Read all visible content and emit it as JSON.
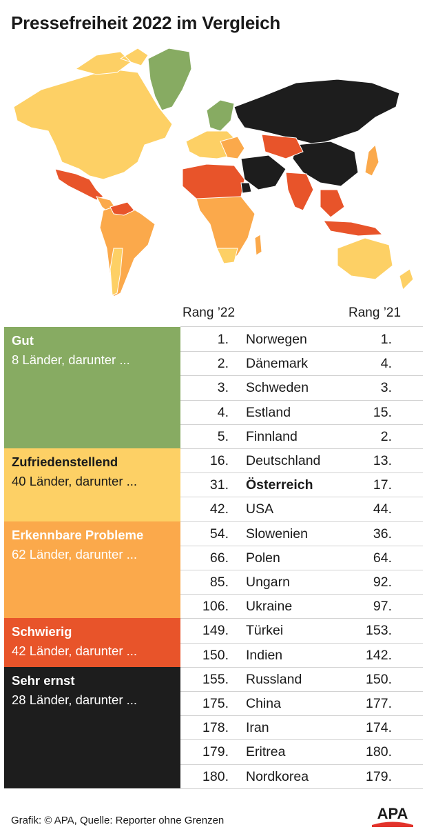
{
  "title": "Pressefreiheit 2022 im Vergleich",
  "colors": {
    "gut": "#87ab62",
    "zufriedenstellend": "#fdd065",
    "erkennbare_probleme": "#fba94b",
    "schwierig": "#e8542a",
    "sehr_ernst": "#1d1d1d",
    "apa_red": "#e2332b"
  },
  "chart_data": {
    "type": "table",
    "headers": {
      "rank_2022": "Rang ’22",
      "rank_2021": "Rang ’21"
    },
    "categories": [
      {
        "name": "Gut",
        "count_text": "8 Länder, darunter ...",
        "color": "#87ab62"
      },
      {
        "name": "Zufriedenstellend",
        "count_text": "40 Länder, darunter ...",
        "color": "#fdd065"
      },
      {
        "name": "Erkennbare Probleme",
        "count_text": "62 Länder, darunter ...",
        "color": "#fba94b"
      },
      {
        "name": "Schwierig",
        "count_text": "42 Länder, darunter ...",
        "color": "#e8542a"
      },
      {
        "name": "Sehr ernst",
        "count_text": "28 Länder, darunter ...",
        "color": "#1d1d1d"
      }
    ],
    "rows": [
      {
        "rank_2022": "1.",
        "country": "Norwegen",
        "rank_2021": "1.",
        "category": "Gut"
      },
      {
        "rank_2022": "2.",
        "country": "Dänemark",
        "rank_2021": "4.",
        "category": "Gut"
      },
      {
        "rank_2022": "3.",
        "country": "Schweden",
        "rank_2021": "3.",
        "category": "Gut"
      },
      {
        "rank_2022": "4.",
        "country": "Estland",
        "rank_2021": "15.",
        "category": "Gut"
      },
      {
        "rank_2022": "5.",
        "country": "Finnland",
        "rank_2021": "2.",
        "category": "Gut"
      },
      {
        "rank_2022": "16.",
        "country": "Deutschland",
        "rank_2021": "13.",
        "category": "Zufriedenstellend"
      },
      {
        "rank_2022": "31.",
        "country": "Österreich",
        "rank_2021": "17.",
        "category": "Zufriedenstellend",
        "highlight": true
      },
      {
        "rank_2022": "42.",
        "country": "USA",
        "rank_2021": "44.",
        "category": "Zufriedenstellend"
      },
      {
        "rank_2022": "54.",
        "country": "Slowenien",
        "rank_2021": "36.",
        "category": "Erkennbare Probleme"
      },
      {
        "rank_2022": "66.",
        "country": "Polen",
        "rank_2021": "64.",
        "category": "Erkennbare Probleme"
      },
      {
        "rank_2022": "85.",
        "country": "Ungarn",
        "rank_2021": "92.",
        "category": "Erkennbare Probleme"
      },
      {
        "rank_2022": "106.",
        "country": "Ukraine",
        "rank_2021": "97.",
        "category": "Erkennbare Probleme"
      },
      {
        "rank_2022": "149.",
        "country": "Türkei",
        "rank_2021": "153.",
        "category": "Schwierig"
      },
      {
        "rank_2022": "150.",
        "country": "Indien",
        "rank_2021": "142.",
        "category": "Schwierig"
      },
      {
        "rank_2022": "155.",
        "country": "Russland",
        "rank_2021": "150.",
        "category": "Sehr ernst"
      },
      {
        "rank_2022": "175.",
        "country": "China",
        "rank_2021": "177.",
        "category": "Sehr ernst"
      },
      {
        "rank_2022": "178.",
        "country": "Iran",
        "rank_2021": "174.",
        "category": "Sehr ernst"
      },
      {
        "rank_2022": "179.",
        "country": "Eritrea",
        "rank_2021": "180.",
        "category": "Sehr ernst"
      },
      {
        "rank_2022": "180.",
        "country": "Nordkorea",
        "rank_2021": "179.",
        "category": "Sehr ernst"
      }
    ]
  },
  "source": "Grafik: © APA, Quelle: Reporter ohne Grenzen",
  "logo_text": "APA"
}
